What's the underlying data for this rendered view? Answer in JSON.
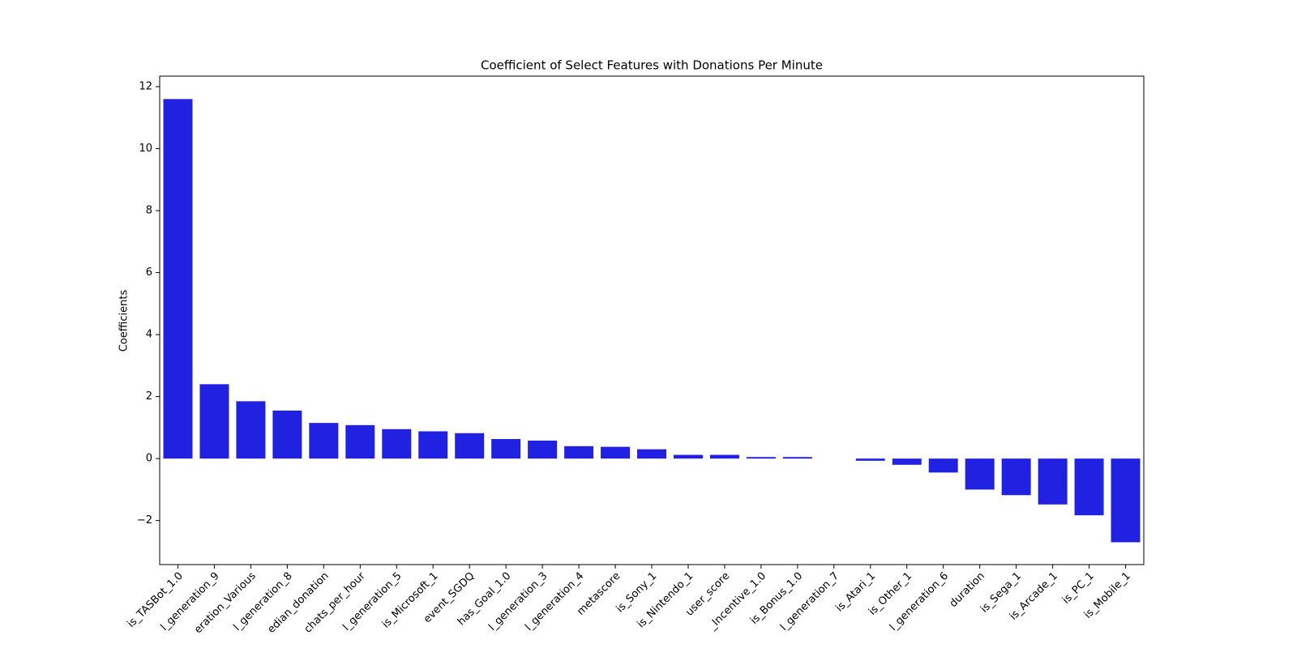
{
  "chart_data": {
    "type": "bar",
    "title": "Coefficient of Select Features with Donations Per Minute",
    "y_label": "Coefficients",
    "color": "#2121e1",
    "categories": [
      "is_TASBot_1.0",
      "l_generation_9",
      "eration_Various",
      "l_generation_8",
      "edian_donation",
      "chats_per_hour",
      "l_generation_5",
      "is_Microsoft_1",
      "event_SGDQ",
      "has_Goal_1.0",
      "l_generation_3",
      "l_generation_4",
      "metascore",
      "is_Sony_1",
      "is_Nintendo_1",
      "user_score",
      "_Incentive_1.0",
      "is_Bonus_1.0",
      "l_generation_7",
      "is_Atari_1",
      "is_Other_1",
      "l_generation_6",
      "duration",
      "is_Sega_1",
      "is_Arcade_1",
      "is_PC_1",
      "is_Mobile_1"
    ],
    "values": [
      11.6,
      2.4,
      1.85,
      1.55,
      1.15,
      1.08,
      0.95,
      0.88,
      0.82,
      0.63,
      0.58,
      0.4,
      0.38,
      0.3,
      0.12,
      0.12,
      0.05,
      0.05,
      0,
      -0.07,
      -0.2,
      -0.45,
      -1.0,
      -1.18,
      -1.48,
      -1.83,
      -2.7
    ],
    "ylim": [
      -3.42,
      12.34
    ],
    "yticks": [
      {
        "value": -2,
        "label": "−2"
      },
      0,
      2,
      4,
      6,
      8,
      10,
      12
    ]
  }
}
